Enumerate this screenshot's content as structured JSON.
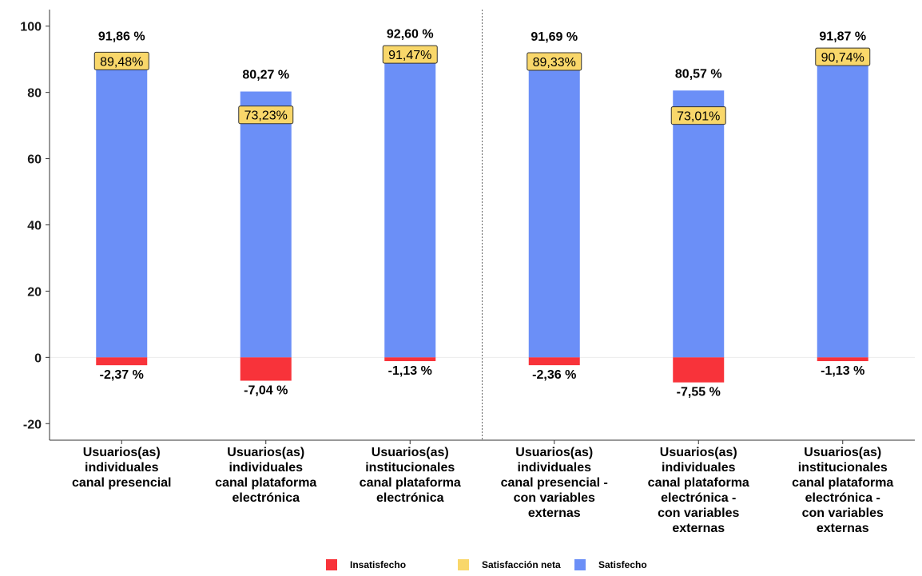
{
  "chart_data": {
    "type": "bar",
    "categories": [
      [
        "Usuarios(as)",
        "individuales",
        "canal presencial"
      ],
      [
        "Usuarios(as)",
        "individuales",
        "canal plataforma",
        "electrónica"
      ],
      [
        "Usuarios(as)",
        "institucionales",
        "canal plataforma",
        "electrónica"
      ],
      [
        "Usuarios(as)",
        "individuales",
        "canal presencial -",
        "con variables",
        "externas"
      ],
      [
        "Usuarios(as)",
        "individuales",
        "canal plataforma",
        "electrónica -",
        "con variables",
        "externas"
      ],
      [
        "Usuarios(as)",
        "institucionales",
        "canal plataforma",
        "electrónica -",
        "con variables",
        "externas"
      ]
    ],
    "series": [
      {
        "name": "Satisfecho",
        "color": "#6b8ff7",
        "values": [
          91.86,
          80.27,
          92.6,
          91.69,
          80.57,
          91.87
        ]
      },
      {
        "name": "Insatisfecho",
        "color": "#f8333a",
        "values": [
          -2.37,
          -7.04,
          -1.13,
          -2.36,
          -7.55,
          -1.13
        ]
      },
      {
        "name": "Satisfacción neta",
        "color": "#f9d76a",
        "values": [
          89.48,
          73.23,
          91.47,
          89.33,
          73.01,
          90.74
        ]
      }
    ],
    "labels": {
      "satisfecho": [
        "91,86 %",
        "80,27 %",
        "92,60 %",
        "91,69 %",
        "80,57 %",
        "91,87 %"
      ],
      "insatisfecho": [
        "-2,37 %",
        "-7,04 %",
        "-1,13 %",
        "-2,36 %",
        "-7,55 %",
        "-1,13 %"
      ],
      "neta": [
        "89,48%",
        "73,23%",
        "91,47%",
        "89,33%",
        "73,01%",
        "90,74%"
      ]
    },
    "yticks": [
      {
        "value": 100,
        "label": "100"
      },
      {
        "value": 80,
        "label": "80"
      },
      {
        "value": 60,
        "label": "60"
      },
      {
        "value": 40,
        "label": "40"
      },
      {
        "value": 20,
        "label": "20"
      },
      {
        "value": 0,
        "label": "0"
      },
      {
        "value": -20,
        "label": "-20"
      }
    ],
    "ylim": [
      -25,
      105
    ],
    "divider_after_category": 3,
    "legend": [
      {
        "name": "Insatisfecho",
        "color": "#f8333a"
      },
      {
        "name": "Satisfacción neta",
        "color": "#f9d76a"
      },
      {
        "name": "Satisfecho",
        "color": "#6b8ff7"
      }
    ],
    "legend_position": "bottom",
    "title": "",
    "xlabel": "",
    "ylabel": ""
  }
}
